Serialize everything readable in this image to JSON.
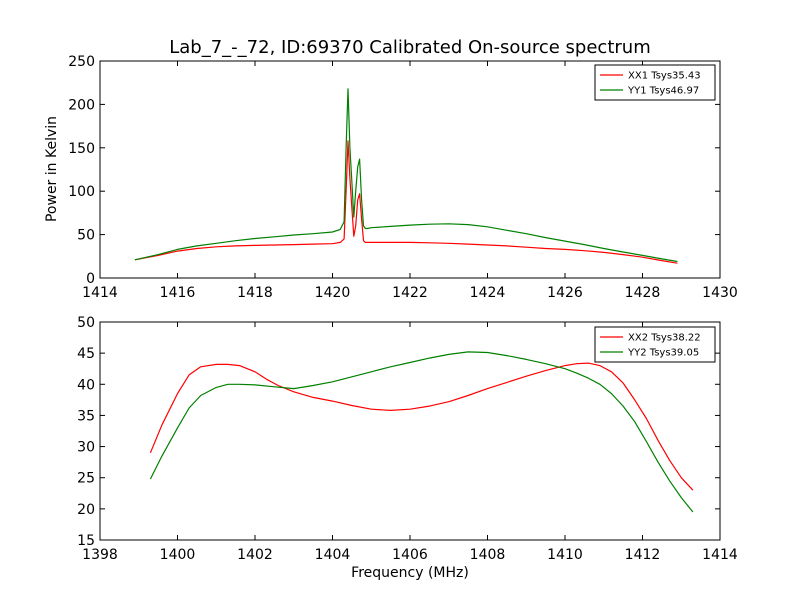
{
  "title": "Lab_7_-_72, ID:69370 Calibrated On-source spectrum",
  "colors": {
    "xx": "#ff0000",
    "yy": "#008000"
  },
  "chart_data": [
    {
      "type": "line",
      "title": "Lab_7_-_72, ID:69370 Calibrated On-source spectrum",
      "xlabel": "",
      "ylabel": "Power in Kelvin",
      "xlim": [
        1414,
        1430
      ],
      "ylim": [
        0,
        250
      ],
      "xticks": [
        "1414",
        "1416",
        "1418",
        "1420",
        "1422",
        "1424",
        "1426",
        "1428",
        "1430"
      ],
      "yticks": [
        "0",
        "50",
        "100",
        "150",
        "200",
        "250"
      ],
      "legend": "top-right",
      "grid": false,
      "series": [
        {
          "name": "XX1 Tsys35.43",
          "color": "#ff0000",
          "x": [
            1414.9,
            1415.5,
            1416,
            1416.5,
            1417,
            1417.5,
            1418,
            1418.5,
            1419,
            1419.5,
            1420,
            1420.2,
            1420.3,
            1420.35,
            1420.4,
            1420.45,
            1420.5,
            1420.55,
            1420.6,
            1420.65,
            1420.7,
            1420.75,
            1420.8,
            1420.85,
            1420.9,
            1421,
            1421.5,
            1422,
            1422.5,
            1423,
            1423.5,
            1424,
            1424.5,
            1425,
            1425.5,
            1426,
            1426.5,
            1427,
            1427.5,
            1428,
            1428.5,
            1428.9
          ],
          "y": [
            21,
            26,
            31,
            34,
            36,
            37,
            37.5,
            38,
            38.5,
            39,
            39.5,
            41,
            45,
            100,
            158,
            115,
            80,
            48,
            60,
            90,
            97,
            68,
            43,
            41,
            41,
            41,
            41,
            41,
            40.5,
            40,
            39,
            38,
            37,
            35.5,
            34,
            33,
            31.5,
            29.5,
            27,
            24,
            20,
            17
          ]
        },
        {
          "name": "YY1 Tsys46.97",
          "color": "#008000",
          "x": [
            1414.9,
            1415.5,
            1416,
            1416.5,
            1417,
            1417.5,
            1418,
            1418.5,
            1419,
            1419.5,
            1420,
            1420.2,
            1420.3,
            1420.35,
            1420.4,
            1420.45,
            1420.5,
            1420.55,
            1420.6,
            1420.65,
            1420.7,
            1420.75,
            1420.8,
            1420.85,
            1420.9,
            1421,
            1421.5,
            1422,
            1422.5,
            1423,
            1423.5,
            1424,
            1424.5,
            1425,
            1425.5,
            1426,
            1426.5,
            1427,
            1427.5,
            1428,
            1428.5,
            1428.9
          ],
          "y": [
            21,
            27,
            33,
            37,
            40,
            43,
            45.5,
            47.5,
            49.5,
            51,
            53,
            56,
            65,
            150,
            218,
            150,
            110,
            70,
            100,
            128,
            137,
            90,
            60,
            57,
            57,
            58,
            59.5,
            61,
            62,
            62.5,
            61.5,
            59,
            55,
            51,
            46.5,
            42.5,
            38.5,
            34,
            30,
            26,
            22,
            19
          ]
        }
      ]
    },
    {
      "type": "line",
      "title": "",
      "xlabel": "Frequency (MHz)",
      "ylabel": "",
      "xlim": [
        1398,
        1414
      ],
      "ylim": [
        15,
        50
      ],
      "xticks": [
        "1398",
        "1400",
        "1402",
        "1404",
        "1406",
        "1408",
        "1410",
        "1412",
        "1414"
      ],
      "yticks": [
        "15",
        "20",
        "25",
        "30",
        "35",
        "40",
        "45",
        "50"
      ],
      "legend": "top-right",
      "grid": false,
      "series": [
        {
          "name": "XX2 Tsys38.22",
          "color": "#ff0000",
          "x": [
            1399.3,
            1399.6,
            1400,
            1400.3,
            1400.6,
            1401,
            1401.3,
            1401.6,
            1402,
            1402.3,
            1402.6,
            1403,
            1403.5,
            1404,
            1404.5,
            1405,
            1405.5,
            1406,
            1406.5,
            1407,
            1407.5,
            1408,
            1408.5,
            1409,
            1409.5,
            1410,
            1410.3,
            1410.6,
            1410.9,
            1411.2,
            1411.5,
            1411.8,
            1412.1,
            1412.4,
            1412.7,
            1413,
            1413.3
          ],
          "y": [
            29,
            33.5,
            38.5,
            41.5,
            42.8,
            43.2,
            43.2,
            43,
            42,
            40.8,
            39.8,
            38.8,
            37.9,
            37.3,
            36.6,
            36,
            35.8,
            36,
            36.5,
            37.2,
            38.2,
            39.3,
            40.3,
            41.3,
            42.2,
            43,
            43.3,
            43.4,
            43,
            42,
            40.2,
            37.5,
            34.5,
            31,
            27.8,
            25,
            23
          ]
        },
        {
          "name": "YY2 Tsys39.05",
          "color": "#008000",
          "x": [
            1399.3,
            1399.6,
            1400,
            1400.3,
            1400.6,
            1401,
            1401.3,
            1401.6,
            1402,
            1402.5,
            1403,
            1403.5,
            1404,
            1404.5,
            1405,
            1405.5,
            1406,
            1406.5,
            1407,
            1407.5,
            1408,
            1408.5,
            1409,
            1409.5,
            1410,
            1410.3,
            1410.6,
            1410.9,
            1411.2,
            1411.5,
            1411.8,
            1412.1,
            1412.4,
            1412.7,
            1413,
            1413.3
          ],
          "y": [
            24.8,
            28.5,
            33,
            36.2,
            38.2,
            39.5,
            40,
            40,
            39.9,
            39.6,
            39.3,
            39.8,
            40.4,
            41.2,
            42,
            42.8,
            43.5,
            44.2,
            44.8,
            45.2,
            45.1,
            44.6,
            44,
            43.3,
            42.5,
            41.8,
            41,
            40,
            38.5,
            36.5,
            34,
            30.8,
            27.5,
            24.5,
            21.8,
            19.5
          ]
        }
      ]
    }
  ]
}
